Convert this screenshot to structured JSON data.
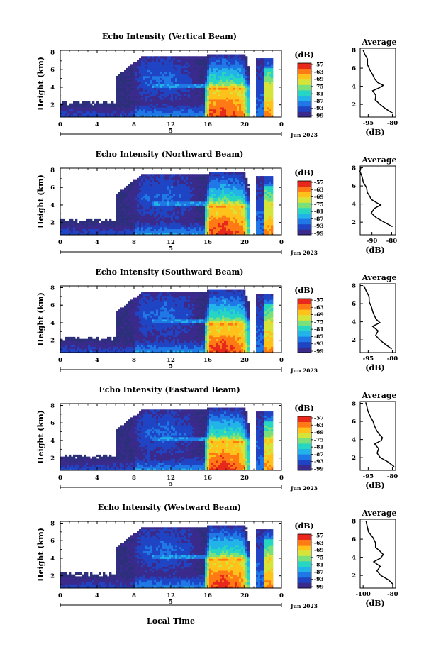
{
  "chart_data": [
    {
      "type": "heatmap",
      "title": "Echo Intensity (Vertical Beam)",
      "ylabel": "Height (km)",
      "xticks": [
        "0",
        "4",
        "8",
        "12",
        "16",
        "20",
        "0"
      ],
      "yticks": [
        "2",
        "4",
        "6",
        "8"
      ],
      "xlim_hours": [
        0,
        24
      ],
      "ylim_km": [
        0.6,
        8.2
      ],
      "date_marker": "5",
      "date_label": "Jun 2023",
      "colorbar": {
        "unit": "(dB)",
        "ticks": [
          "-57",
          "-63",
          "-69",
          "-75",
          "-81",
          "-87",
          "-93",
          "-99"
        ],
        "range": [
          -99,
          -54
        ]
      },
      "profile": {
        "title": "Average",
        "xlabel": "(dB)",
        "xticks": [
          "-95",
          "-80"
        ],
        "xlim": [
          -100,
          -78
        ],
        "heights": [
          1.0,
          1.5,
          2.0,
          2.5,
          3.0,
          3.5,
          3.8,
          4.1,
          4.4,
          4.8,
          5.2,
          5.8,
          6.4,
          7.0,
          7.6,
          8.0
        ],
        "values": [
          -79,
          -84,
          -88,
          -91,
          -90,
          -92,
          -88,
          -86,
          -89,
          -91,
          -92,
          -94,
          -95,
          -96,
          -97,
          -98
        ]
      }
    },
    {
      "type": "heatmap",
      "title": "Echo Intensity (Northward Beam)",
      "ylabel": "Height (km)",
      "xticks": [
        "0",
        "4",
        "8",
        "12",
        "16",
        "20",
        "0"
      ],
      "yticks": [
        "2",
        "4",
        "6",
        "8"
      ],
      "xlim_hours": [
        0,
        24
      ],
      "ylim_km": [
        0.6,
        8.2
      ],
      "date_marker": "5",
      "date_label": "Jun 2023",
      "colorbar": {
        "unit": "(dB)",
        "ticks": [
          "-57",
          "-63",
          "-69",
          "-75",
          "-81",
          "-87",
          "-93",
          "-99"
        ],
        "range": [
          -99,
          -54
        ]
      },
      "profile": {
        "title": "Average",
        "xlabel": "(dB)",
        "xticks": [
          "-90",
          "-80"
        ],
        "xlim": [
          -96,
          -78
        ],
        "heights": [
          1.5,
          2.0,
          2.5,
          3.0,
          3.5,
          3.9,
          4.2,
          4.5,
          4.9,
          5.3,
          5.8,
          6.4,
          7.0,
          7.6,
          8.0
        ],
        "values": [
          -80,
          -84,
          -88,
          -90,
          -89,
          -86,
          -88,
          -90,
          -91,
          -92,
          -93,
          -94,
          -95,
          -96,
          -96
        ]
      }
    },
    {
      "type": "heatmap",
      "title": "Echo Intensity (Southward Beam)",
      "ylabel": "Height (km)",
      "xticks": [
        "0",
        "4",
        "8",
        "12",
        "16",
        "20",
        "0"
      ],
      "yticks": [
        "2",
        "4",
        "6",
        "8"
      ],
      "xlim_hours": [
        0,
        24
      ],
      "ylim_km": [
        0.6,
        8.2
      ],
      "date_marker": "5",
      "date_label": "Jun 2023",
      "colorbar": {
        "unit": "(dB)",
        "ticks": [
          "-57",
          "-63",
          "-69",
          "-75",
          "-81",
          "-87",
          "-93",
          "-99"
        ],
        "range": [
          -99,
          -54
        ]
      },
      "profile": {
        "title": "Average",
        "xlabel": "(dB)",
        "xticks": [
          "-95",
          "-80"
        ],
        "xlim": [
          -100,
          -78
        ],
        "heights": [
          1.0,
          1.5,
          2.0,
          2.5,
          3.0,
          3.5,
          3.9,
          4.3,
          4.7,
          5.1,
          5.6,
          6.2,
          6.8,
          7.4,
          8.0
        ],
        "values": [
          -80,
          -84,
          -88,
          -90,
          -89,
          -92,
          -88,
          -90,
          -91,
          -92,
          -93,
          -94,
          -95,
          -96,
          -98
        ]
      }
    },
    {
      "type": "heatmap",
      "title": "Echo Intensity (Eastward Beam)",
      "ylabel": "Height (km)",
      "xticks": [
        "0",
        "4",
        "8",
        "12",
        "16",
        "20",
        "0"
      ],
      "yticks": [
        "2",
        "4",
        "6",
        "8"
      ],
      "xlim_hours": [
        0,
        24
      ],
      "ylim_km": [
        0.6,
        8.2
      ],
      "date_marker": "5",
      "date_label": "Jun 2023",
      "colorbar": {
        "unit": "(dB)",
        "ticks": [
          "-57",
          "-63",
          "-69",
          "-75",
          "-81",
          "-87",
          "-93",
          "-99"
        ],
        "range": [
          -99,
          -54
        ]
      },
      "profile": {
        "title": "Average",
        "xlabel": "(dB)",
        "xticks": [
          "-95",
          "-80"
        ],
        "xlim": [
          -100,
          -78
        ],
        "heights": [
          1.0,
          1.5,
          2.0,
          2.5,
          3.0,
          3.5,
          3.9,
          4.2,
          4.6,
          5.0,
          5.5,
          6.0,
          6.6,
          7.2,
          7.8,
          8.1
        ],
        "values": [
          -79,
          -83,
          -87,
          -89,
          -88,
          -91,
          -87,
          -86,
          -88,
          -90,
          -91,
          -92,
          -94,
          -95,
          -96,
          -97
        ]
      }
    },
    {
      "type": "heatmap",
      "title": "Echo Intensity (Westward Beam)",
      "ylabel": "Height (km)",
      "xlabel": "Local Time",
      "xticks": [
        "0",
        "4",
        "8",
        "12",
        "16",
        "20",
        "0"
      ],
      "yticks": [
        "2",
        "4",
        "6",
        "8"
      ],
      "xlim_hours": [
        0,
        24
      ],
      "ylim_km": [
        0.6,
        8.2
      ],
      "date_marker": "5",
      "date_label": "Jun 2023",
      "colorbar": {
        "unit": "(dB)",
        "ticks": [
          "-57",
          "-63",
          "-69",
          "-75",
          "-81",
          "-87",
          "-93",
          "-99"
        ],
        "range": [
          -99,
          -54
        ]
      },
      "profile": {
        "title": "Average",
        "xlabel": "(dB)",
        "xticks": [
          "-100",
          "-80"
        ],
        "xlim": [
          -102,
          -78
        ],
        "heights": [
          1.0,
          1.5,
          2.0,
          2.5,
          3.0,
          3.5,
          3.9,
          4.3,
          4.7,
          5.1,
          5.6,
          6.2,
          6.8,
          7.4,
          8.0
        ],
        "values": [
          -79,
          -83,
          -88,
          -91,
          -89,
          -93,
          -88,
          -86,
          -89,
          -91,
          -92,
          -94,
          -96,
          -97,
          -98
        ]
      }
    }
  ],
  "colors": {
    "colormap": [
      "#3a2a8c",
      "#1f44c4",
      "#1f78e6",
      "#22b4e8",
      "#27d6c2",
      "#7ae07a",
      "#d6e43a",
      "#ffc21a",
      "#ff7a14",
      "#e8281a"
    ],
    "sparse": "#2c2f7a",
    "background": "#ffffff"
  }
}
